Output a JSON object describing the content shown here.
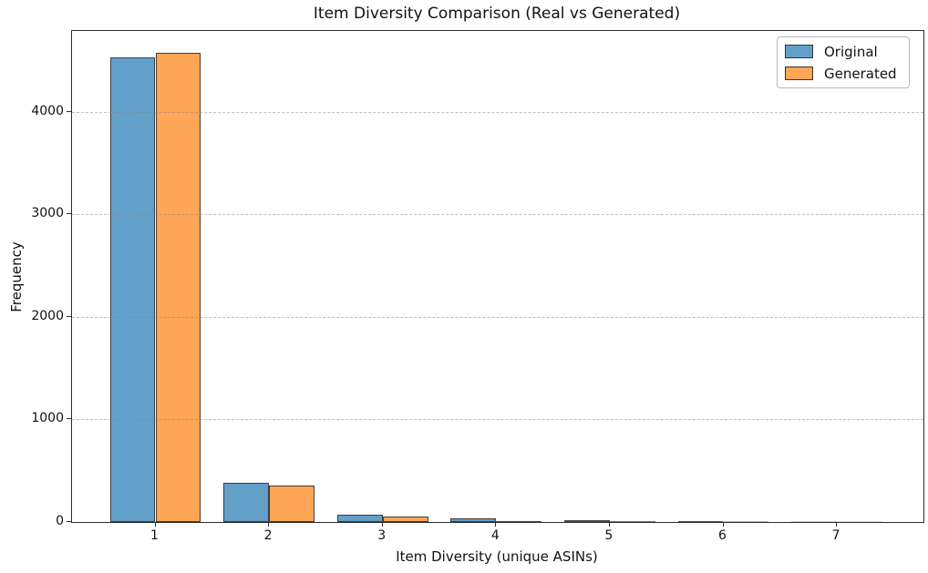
{
  "chart_data": {
    "type": "bar",
    "title": "Item Diversity Comparison (Real vs Generated)",
    "xlabel": "Item Diversity (unique ASINs)",
    "ylabel": "Frequency",
    "categories": [
      "1",
      "2",
      "3",
      "4",
      "5",
      "6",
      "7"
    ],
    "series": [
      {
        "name": "Original",
        "color": "#62A0CA",
        "edge_color": "#3d3d3d",
        "values": [
          4530,
          385,
          70,
          32,
          16,
          10,
          3
        ]
      },
      {
        "name": "Generated",
        "color": "#FFA556",
        "edge_color": "#3d3d3d",
        "values": [
          4575,
          358,
          55,
          12,
          8,
          4,
          2
        ]
      }
    ],
    "ylim": [
      0,
      4790
    ],
    "yticks": [
      0,
      1000,
      2000,
      3000,
      4000
    ],
    "grid": "horizontal-dashed",
    "grid_color": "#828282",
    "legend_position": "top-right",
    "legend_entries": [
      "Original",
      "Generated"
    ],
    "bar_group_width_fraction": 0.8,
    "background_color": "#ffffff",
    "spine_color": "#2b2b2b"
  }
}
